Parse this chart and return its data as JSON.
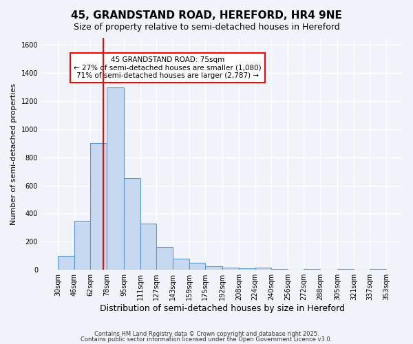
{
  "title": "45, GRANDSTAND ROAD, HEREFORD, HR4 9NE",
  "subtitle": "Size of property relative to semi-detached houses in Hereford",
  "xlabel": "Distribution of semi-detached houses by size in Hereford",
  "ylabel": "Number of semi-detached properties",
  "bar_color": "#c6d9f0",
  "bar_edge_color": "#5b9bd5",
  "background_color": "#f0f4fa",
  "grid_color": "white",
  "vline_x": 75,
  "vline_color": "red",
  "annotation_title": "45 GRANDSTAND ROAD: 75sqm",
  "annotation_line1": "← 27% of semi-detached houses are smaller (1,080)",
  "annotation_line2": "71% of semi-detached houses are larger (2,787) →",
  "annotation_box_color": "red",
  "bins": [
    30,
    46,
    62,
    78,
    95,
    111,
    127,
    143,
    159,
    175,
    192,
    208,
    224,
    240,
    256,
    272,
    288,
    305,
    321,
    337,
    353
  ],
  "bin_labels": [
    "30sqm",
    "46sqm",
    "62sqm",
    "78sqm",
    "95sqm",
    "111sqm",
    "127sqm",
    "143sqm",
    "159sqm",
    "175sqm",
    "192sqm",
    "208sqm",
    "224sqm",
    "240sqm",
    "256sqm",
    "272sqm",
    "288sqm",
    "305sqm",
    "321sqm",
    "337sqm",
    "353sqm"
  ],
  "bar_heights": [
    100,
    350,
    900,
    1300,
    650,
    330,
    160,
    80,
    50,
    25,
    15,
    10,
    15,
    5,
    0,
    5,
    0,
    5,
    0,
    5
  ],
  "ylim": [
    0,
    1650
  ],
  "yticks": [
    0,
    200,
    400,
    600,
    800,
    1000,
    1200,
    1400,
    1600
  ],
  "footer1": "Contains HM Land Registry data © Crown copyright and database right 2025.",
  "footer2": "Contains public sector information licensed under the Open Government Licence v3.0."
}
